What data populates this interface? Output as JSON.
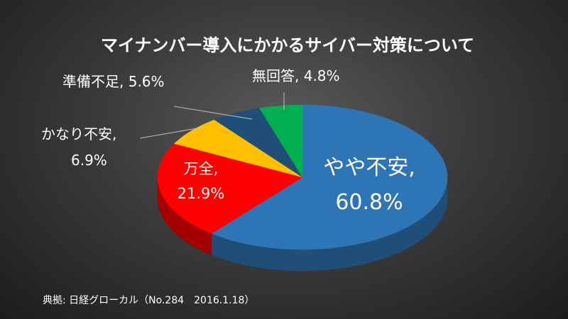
{
  "chart_data": {
    "type": "pie",
    "title": "マイナンバー導入にかかるサイバー対策について",
    "slices": [
      {
        "label": "やや不安",
        "value_label": "60.8%",
        "value": 60.8,
        "color": "#2E75B6",
        "side_color": "#1F4E79"
      },
      {
        "label": "万全",
        "value_label": "21.9%",
        "value": 21.9,
        "color": "#FF0000",
        "side_color": "#A50000"
      },
      {
        "label": "かなり不安",
        "value_label": "6.9%",
        "value": 6.9,
        "color": "#FFC000",
        "side_color": "#B88A00"
      },
      {
        "label": "準備不足",
        "value_label": "5.6%",
        "value": 5.6,
        "color": "#1F4E79",
        "side_color": "#142F4A"
      },
      {
        "label": "無回答",
        "value_label": "4.8%",
        "value": 4.8,
        "color": "#00B050",
        "side_color": "#007A36"
      }
    ],
    "legend": "none"
  },
  "source": "典拠: 日経グローカル（No.284　2016.1.18）"
}
